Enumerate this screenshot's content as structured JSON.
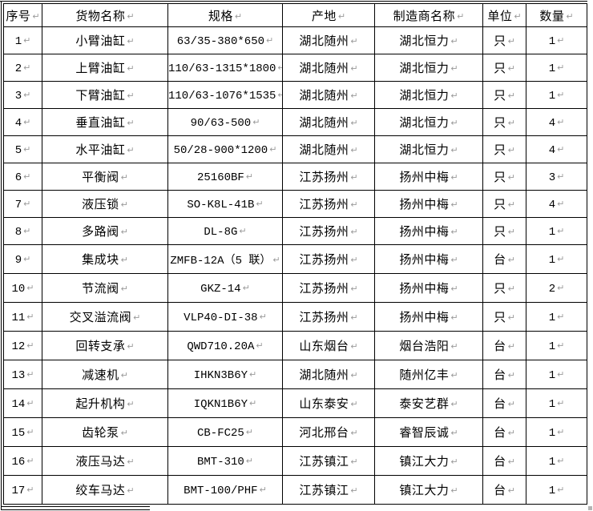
{
  "document": {
    "columns": [
      "序号",
      "货物名称",
      "规格",
      "产地",
      "制造商名称",
      "单位",
      "数量"
    ],
    "rows": [
      [
        "1",
        "小臂油缸",
        "63/35-380*650",
        "湖北随州",
        "湖北恒力",
        "只",
        "1"
      ],
      [
        "2",
        "上臂油缸",
        "110/63-1315*1800",
        "湖北随州",
        "湖北恒力",
        "只",
        "1"
      ],
      [
        "3",
        "下臂油缸",
        "110/63-1076*1535",
        "湖北随州",
        "湖北恒力",
        "只",
        "1"
      ],
      [
        "4",
        "垂直油缸",
        "90/63-500",
        "湖北随州",
        "湖北恒力",
        "只",
        "4"
      ],
      [
        "5",
        "水平油缸",
        "50/28-900*1200",
        "湖北随州",
        "湖北恒力",
        "只",
        "4"
      ],
      [
        "6",
        "平衡阀",
        "25160BF",
        "江苏扬州",
        "扬州中梅",
        "只",
        "3"
      ],
      [
        "7",
        "液压锁",
        "SO-K8L-41B",
        "江苏扬州",
        "扬州中梅",
        "只",
        "4"
      ],
      [
        "8",
        "多路阀",
        "DL-8G",
        "江苏扬州",
        "扬州中梅",
        "只",
        "1"
      ],
      [
        "9",
        "集成块",
        "ZMFB-12A（5 联）",
        "江苏扬州",
        "扬州中梅",
        "台",
        "1"
      ],
      [
        "10",
        "节流阀",
        "GKZ-14",
        "江苏扬州",
        "扬州中梅",
        "只",
        "2"
      ],
      [
        "11",
        "交叉溢流阀",
        "VLP40-DI-38",
        "江苏扬州",
        "扬州中梅",
        "只",
        "1"
      ],
      [
        "12",
        "回转支承",
        "QWD710.20A",
        "山东烟台",
        "烟台浩阳",
        "台",
        "1"
      ],
      [
        "13",
        "减速机",
        "IHKN3B6Y",
        "湖北随州",
        "随州亿丰",
        "台",
        "1"
      ],
      [
        "14",
        "起升机构",
        "IQKN1B6Y",
        "山东泰安",
        "泰安艺群",
        "台",
        "1"
      ],
      [
        "15",
        "齿轮泵",
        "CB-FC25",
        "河北邢台",
        "睿智辰诚",
        "台",
        "1"
      ],
      [
        "16",
        "液压马达",
        "BMT-310",
        "江苏镇江",
        "镇江大力",
        "台",
        "1"
      ],
      [
        "17",
        "绞车马达",
        "BMT-100/PHF",
        "江苏镇江",
        "镇江大力",
        "台",
        "1"
      ]
    ],
    "formatting_mark": "↵"
  },
  "colors": {
    "border": "#000000",
    "text": "#000000",
    "formatting_mark": "#9a9a9a",
    "background": "#ffffff"
  }
}
